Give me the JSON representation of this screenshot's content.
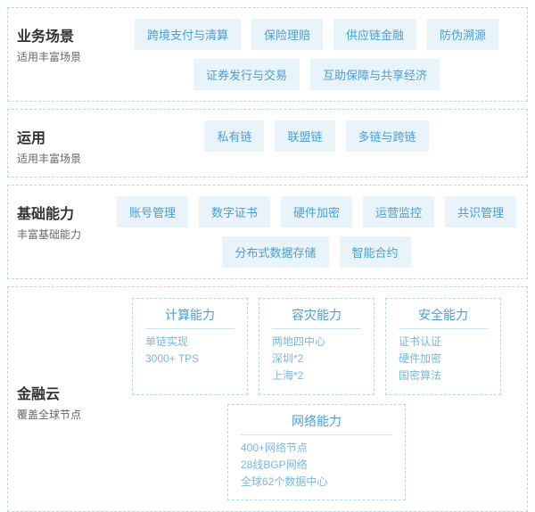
{
  "colors": {
    "border_dashed": "#b8d8e8",
    "chip_bg": "#e8f3fa",
    "chip_text": "#4a9fd8",
    "title_text": "#333333",
    "subtitle_text": "#666666",
    "box_line_text": "#7ab8dd",
    "divider": "#cde4f0",
    "page_bg": "#ffffff"
  },
  "typography": {
    "title_fontsize": 16,
    "subtitle_fontsize": 12,
    "chip_fontsize": 13,
    "box_title_fontsize": 14,
    "box_line_fontsize": 12
  },
  "sections": {
    "business": {
      "title": "业务场景",
      "subtitle": "适用丰富场景",
      "chips": [
        "跨境支付与清算",
        "保险理赔",
        "供应链金融",
        "防伪溯源",
        "证券发行与交易",
        "互助保障与共享经济"
      ]
    },
    "usage": {
      "title": "运用",
      "subtitle": "适用丰富场景",
      "chips": [
        "私有链",
        "联盟链",
        "多链与跨链"
      ]
    },
    "capability": {
      "title": "基础能力",
      "subtitle": "丰富基础能力",
      "chips": [
        "账号管理",
        "数字证书",
        "硬件加密",
        "运营监控",
        "共识管理",
        "分布式数据存储",
        "智能合约"
      ]
    },
    "cloud": {
      "title": "金融云",
      "subtitle": "覆盖全球节点",
      "boxes": {
        "compute": {
          "title": "计算能力",
          "lines": [
            "单链实现",
            "3000+ TPS"
          ]
        },
        "disaster": {
          "title": "容灾能力",
          "lines": [
            "两地四中心",
            "深圳*2",
            "上海*2"
          ]
        },
        "security": {
          "title": "安全能力",
          "lines": [
            "证书认证",
            "硬件加密",
            "国密算法"
          ]
        },
        "network": {
          "title": "网络能力",
          "lines": [
            "400+网络节点",
            "28线BGP网络",
            "全球62个数据中心"
          ]
        }
      }
    }
  }
}
